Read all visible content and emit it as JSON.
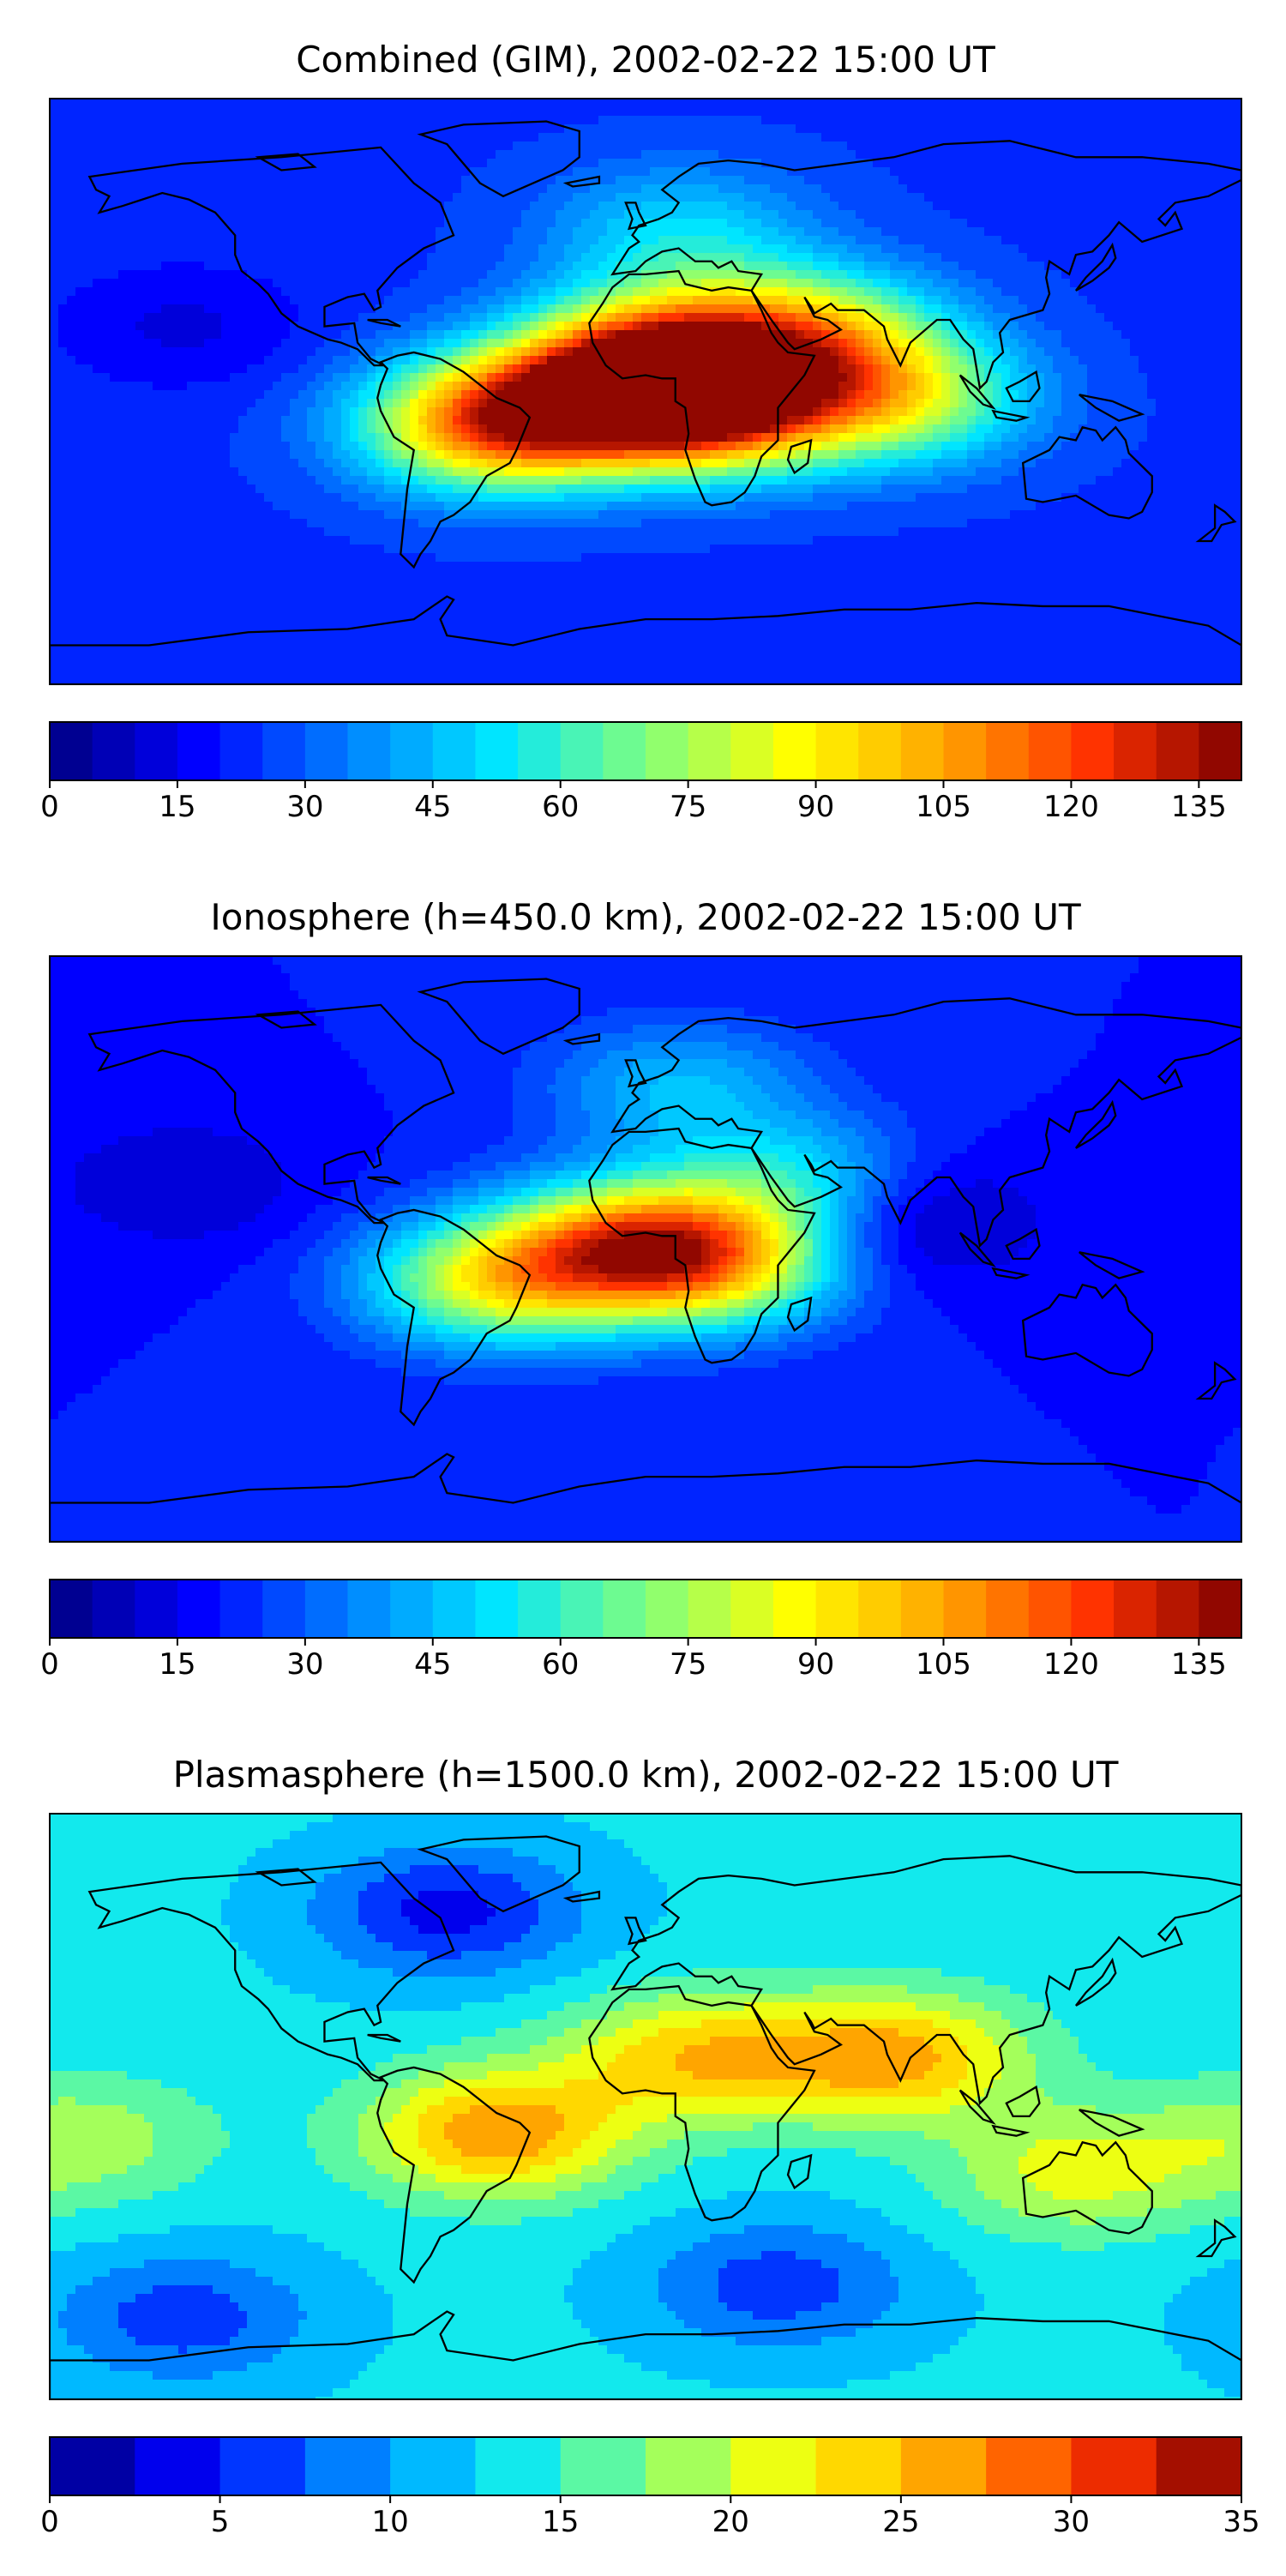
{
  "panels": [
    {
      "title": "Combined (GIM), 2002-02-22 15:00 UT",
      "colorbar": {
        "min": 0,
        "max": 140,
        "levels": 28,
        "ticks": [
          "0",
          "15",
          "30",
          "45",
          "60",
          "75",
          "90",
          "105",
          "120",
          "135"
        ],
        "tick_values": [
          0,
          15,
          30,
          45,
          60,
          75,
          90,
          105,
          120,
          135
        ]
      },
      "field": {
        "base": 24,
        "features": [
          {
            "label": "south-america-peak",
            "lon": -45,
            "lat": -10,
            "amp": 90
          },
          {
            "label": "atlantic-peak",
            "lon": -5,
            "lat": 2,
            "amp": 95
          },
          {
            "label": "africa-peak",
            "lon": 20,
            "lat": -5,
            "amp": 85
          },
          {
            "label": "arabia-band",
            "lon": 50,
            "lat": 18,
            "amp": 55
          },
          {
            "label": "indian-ocean-band",
            "lon": 75,
            "lat": -2,
            "amp": 55
          },
          {
            "label": "sahara",
            "lon": 10,
            "lat": 18,
            "amp": 40
          },
          {
            "label": "europe",
            "lon": 10,
            "lat": 50,
            "amp": 25
          },
          {
            "label": "pacific-low",
            "lon": -140,
            "lat": 20,
            "amp": -10
          }
        ]
      }
    },
    {
      "title": "Ionosphere  (h=450.0 km), 2002-02-22 15:00 UT",
      "colorbar": {
        "min": 0,
        "max": 140,
        "levels": 28,
        "ticks": [
          "0",
          "15",
          "30",
          "45",
          "60",
          "75",
          "90",
          "105",
          "120",
          "135"
        ],
        "tick_values": [
          0,
          15,
          30,
          45,
          60,
          75,
          90,
          105,
          120,
          135
        ]
      },
      "field": {
        "base": 20,
        "features": [
          {
            "label": "south-america-peak",
            "lon": -45,
            "lat": -10,
            "amp": 62
          },
          {
            "label": "atlantic-peak",
            "lon": -5,
            "lat": 2,
            "amp": 68
          },
          {
            "label": "africa-peak",
            "lon": 20,
            "lat": -5,
            "amp": 60
          },
          {
            "label": "arabia-band",
            "lon": 45,
            "lat": 20,
            "amp": 35
          },
          {
            "label": "europe",
            "lon": 10,
            "lat": 50,
            "amp": 25
          },
          {
            "label": "india-low",
            "lon": 75,
            "lat": 10,
            "amp": -20
          },
          {
            "label": "pacific-low",
            "lon": -140,
            "lat": 20,
            "amp": -10
          }
        ]
      }
    },
    {
      "title": "Plasmasphere (h=1500.0 km), 2002-02-22 15:00 UT",
      "colorbar": {
        "min": 0,
        "max": 35,
        "levels": 14,
        "ticks": [
          "0",
          "5",
          "10",
          "15",
          "20",
          "25",
          "30",
          "35"
        ],
        "tick_values": [
          0,
          5,
          10,
          15,
          20,
          25,
          30,
          35
        ]
      },
      "field": {
        "base": 13,
        "features": [
          {
            "label": "brazil-peak",
            "lon": -45,
            "lat": -8,
            "amp": 14
          },
          {
            "label": "sahara-peak",
            "lon": 15,
            "lat": 15,
            "amp": 11
          },
          {
            "label": "india-peak",
            "lon": 75,
            "lat": 15,
            "amp": 13
          },
          {
            "label": "australia",
            "lon": 130,
            "lat": -20,
            "amp": 8
          },
          {
            "label": "pacific-east",
            "lon": -170,
            "lat": -10,
            "amp": 6
          },
          {
            "label": "north-low",
            "lon": -60,
            "lat": 60,
            "amp": -9
          },
          {
            "label": "south-ocean-low",
            "lon": 40,
            "lat": -55,
            "amp": -7
          },
          {
            "label": "south-pacific-low",
            "lon": -140,
            "lat": -65,
            "amp": -7
          }
        ]
      }
    }
  ],
  "colormap": [
    "#00007f",
    "#0000ff",
    "#007fff",
    "#00e5ff",
    "#7fff7f",
    "#ffff00",
    "#ffa500",
    "#ff3300",
    "#7f0000"
  ]
}
